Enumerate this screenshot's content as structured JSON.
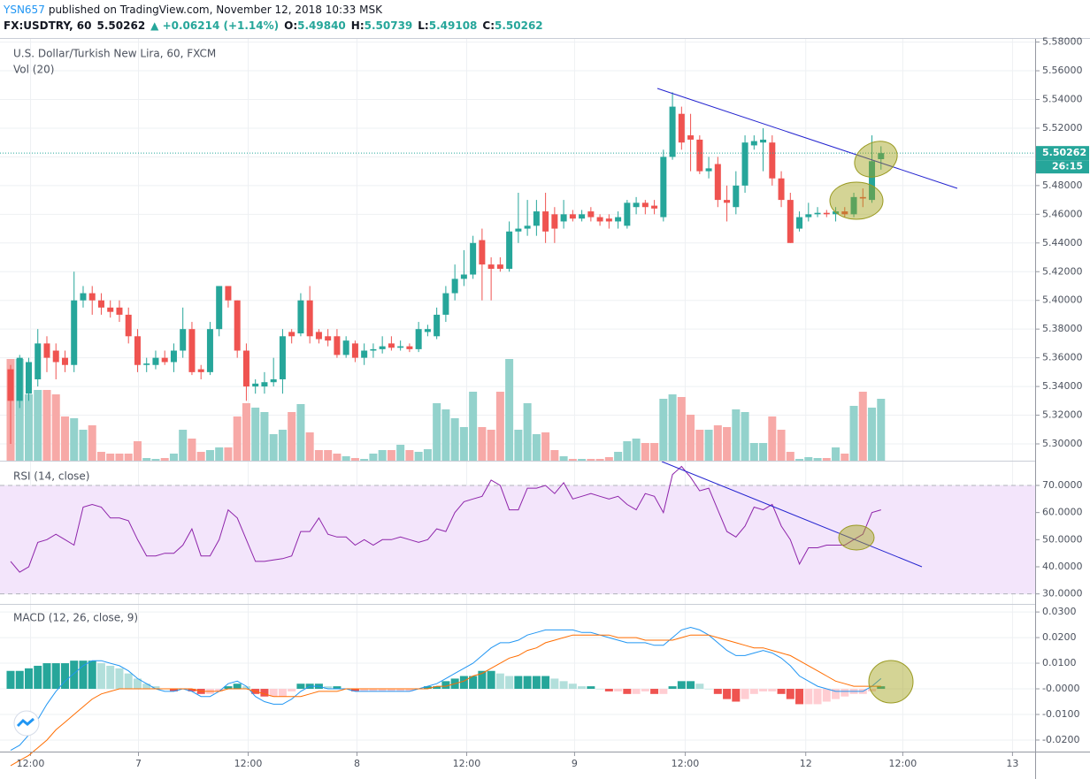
{
  "header": {
    "author": "YSN657",
    "published": "published on TradingView.com, November 12, 2018 10:33 MSK",
    "symbol": "FX:USDTRY, 60",
    "last": "5.50262",
    "change": "▲ +0.06214 (+1.14%)",
    "quote": [
      {
        "label": "O:",
        "value": "5.49840"
      },
      {
        "label": "H:",
        "value": "5.50739"
      },
      {
        "label": "L:",
        "value": "5.49108"
      },
      {
        "label": "C:",
        "value": "5.50262"
      }
    ]
  },
  "chart_data": {
    "type": "candlestick",
    "title": "U.S. Dollar/Turkish New Lira, 60, FXCM",
    "volume_title": "Vol (20)",
    "up_color": "#26a69a",
    "down_color": "#ef5350",
    "volume_up_color": "#93d2cc",
    "volume_down_color": "#f7a9a7",
    "xlim": [
      -1.17,
      113
    ],
    "xticks": [
      {
        "value": 2.2,
        "label": "12:00"
      },
      {
        "value": 14.1,
        "label": "7"
      },
      {
        "value": 26.2,
        "label": "12:00"
      },
      {
        "value": 38.2,
        "label": "8"
      },
      {
        "value": 50.3,
        "label": "12:00"
      },
      {
        "value": 62.2,
        "label": "9"
      },
      {
        "value": 74.4,
        "label": "12:00"
      },
      {
        "value": 87.7,
        "label": "12"
      },
      {
        "value": 98.4,
        "label": "12:00"
      },
      {
        "value": 110.5,
        "label": "13"
      }
    ],
    "ylim": [
      5.2883,
      5.5822
    ],
    "yticks": [
      {
        "value": 5.3,
        "label": "5.30000"
      },
      {
        "value": 5.32,
        "label": "5.32000"
      },
      {
        "value": 5.34,
        "label": "5.34000"
      },
      {
        "value": 5.36,
        "label": "5.36000"
      },
      {
        "value": 5.38,
        "label": "5.38000"
      },
      {
        "value": 5.4,
        "label": "5.40000"
      },
      {
        "value": 5.42,
        "label": "5.42000"
      },
      {
        "value": 5.44,
        "label": "5.44000"
      },
      {
        "value": 5.46,
        "label": "5.46000"
      },
      {
        "value": 5.48,
        "label": "5.48000"
      },
      {
        "value": 5.5,
        "label": "5.50000"
      },
      {
        "value": 5.52,
        "label": "5.52000"
      },
      {
        "value": 5.54,
        "label": "5.54000"
      },
      {
        "value": 5.56,
        "label": "5.56000"
      },
      {
        "value": 5.58,
        "label": "5.58000"
      }
    ],
    "price_line": {
      "value": 5.50262,
      "label": "5.50262"
    },
    "countdown": "26:15",
    "open": [
      5.352,
      5.33,
      5.335,
      5.345,
      5.37,
      5.365,
      5.36,
      5.355,
      5.4,
      5.405,
      5.4,
      5.395,
      5.395,
      5.39,
      5.375,
      5.355,
      5.355,
      5.36,
      5.357,
      5.365,
      5.38,
      5.352,
      5.35,
      5.38,
      5.41,
      5.4,
      5.365,
      5.34,
      5.34,
      5.343,
      5.345,
      5.378,
      5.377,
      5.4,
      5.378,
      5.375,
      5.375,
      5.362,
      5.37,
      5.36,
      5.365,
      5.366,
      5.37,
      5.367,
      5.368,
      5.366,
      5.378,
      5.375,
      5.39,
      5.405,
      5.415,
      5.418,
      5.442,
      5.425,
      5.425,
      5.422,
      5.448,
      5.45,
      5.452,
      5.462,
      5.46,
      5.455,
      5.46,
      5.457,
      5.462,
      5.458,
      5.457,
      5.455,
      5.452,
      5.465,
      5.468,
      5.466,
      5.458,
      5.5,
      5.53,
      5.515,
      5.512,
      5.49,
      5.495,
      5.47,
      5.465,
      5.48,
      5.508,
      5.51,
      5.51,
      5.485,
      5.47,
      5.45,
      5.458,
      5.46,
      5.461,
      5.46,
      5.462,
      5.46,
      5.472,
      5.47,
      5.4984
    ],
    "high": [
      5.355,
      5.362,
      5.36,
      5.38,
      5.375,
      5.37,
      5.365,
      5.42,
      5.41,
      5.41,
      5.405,
      5.4,
      5.4,
      5.395,
      5.38,
      5.36,
      5.365,
      5.365,
      5.37,
      5.395,
      5.385,
      5.355,
      5.385,
      5.41,
      5.41,
      5.4,
      5.37,
      5.345,
      5.35,
      5.36,
      5.38,
      5.38,
      5.405,
      5.41,
      5.38,
      5.38,
      5.38,
      5.375,
      5.372,
      5.37,
      5.37,
      5.375,
      5.375,
      5.372,
      5.37,
      5.385,
      5.383,
      5.395,
      5.41,
      5.425,
      5.435,
      5.445,
      5.45,
      5.43,
      5.43,
      5.455,
      5.475,
      5.47,
      5.47,
      5.475,
      5.465,
      5.47,
      5.463,
      5.463,
      5.465,
      5.46,
      5.46,
      5.462,
      5.47,
      5.472,
      5.47,
      5.47,
      5.505,
      5.545,
      5.535,
      5.53,
      5.515,
      5.5,
      5.5,
      5.48,
      5.49,
      5.515,
      5.515,
      5.52,
      5.515,
      5.49,
      5.475,
      5.462,
      5.468,
      5.465,
      5.463,
      5.465,
      5.465,
      5.475,
      5.478,
      5.515,
      5.50739
    ],
    "low": [
      5.3,
      5.325,
      5.33,
      5.34,
      5.35,
      5.345,
      5.35,
      5.35,
      5.395,
      5.39,
      5.39,
      5.388,
      5.385,
      5.37,
      5.35,
      5.35,
      5.352,
      5.355,
      5.35,
      5.36,
      5.348,
      5.345,
      5.348,
      5.375,
      5.395,
      5.36,
      5.33,
      5.335,
      5.335,
      5.34,
      5.335,
      5.37,
      5.375,
      5.37,
      5.37,
      5.368,
      5.36,
      5.36,
      5.357,
      5.355,
      5.36,
      5.363,
      5.365,
      5.365,
      5.364,
      5.364,
      5.375,
      5.373,
      5.385,
      5.4,
      5.41,
      5.415,
      5.4,
      5.4,
      5.42,
      5.42,
      5.44,
      5.445,
      5.445,
      5.44,
      5.44,
      5.45,
      5.455,
      5.455,
      5.455,
      5.452,
      5.45,
      5.45,
      5.45,
      5.46,
      5.46,
      5.46,
      5.455,
      5.498,
      5.505,
      5.49,
      5.488,
      5.485,
      5.465,
      5.455,
      5.46,
      5.475,
      5.505,
      5.49,
      5.48,
      5.465,
      5.44,
      5.448,
      5.455,
      5.458,
      5.458,
      5.455,
      5.458,
      5.458,
      5.465,
      5.468,
      5.49108
    ],
    "close": [
      5.33,
      5.36,
      5.357,
      5.37,
      5.36,
      5.357,
      5.355,
      5.4,
      5.405,
      5.4,
      5.395,
      5.392,
      5.39,
      5.375,
      5.355,
      5.356,
      5.36,
      5.357,
      5.365,
      5.38,
      5.35,
      5.35,
      5.38,
      5.41,
      5.4,
      5.365,
      5.34,
      5.342,
      5.343,
      5.345,
      5.375,
      5.375,
      5.4,
      5.375,
      5.373,
      5.372,
      5.362,
      5.372,
      5.36,
      5.365,
      5.366,
      5.368,
      5.367,
      5.368,
      5.366,
      5.38,
      5.38,
      5.39,
      5.405,
      5.415,
      5.418,
      5.44,
      5.425,
      5.422,
      5.422,
      5.448,
      5.45,
      5.452,
      5.462,
      5.448,
      5.45,
      5.46,
      5.457,
      5.46,
      5.458,
      5.455,
      5.455,
      5.458,
      5.468,
      5.468,
      5.465,
      5.464,
      5.5,
      5.535,
      5.51,
      5.512,
      5.49,
      5.492,
      5.47,
      5.468,
      5.48,
      5.51,
      5.511,
      5.512,
      5.485,
      5.47,
      5.44,
      5.458,
      5.46,
      5.461,
      5.46,
      5.462,
      5.46,
      5.472,
      5.471,
      5.497,
      5.50262
    ],
    "volume": [
      115,
      115,
      75,
      80,
      80,
      75,
      50,
      48,
      35,
      40,
      10,
      8,
      8,
      8,
      22,
      3,
      2,
      3,
      8,
      35,
      25,
      10,
      12,
      15,
      15,
      50,
      65,
      60,
      55,
      30,
      35,
      55,
      64,
      32,
      12,
      12,
      8,
      5,
      3,
      2,
      8,
      12,
      12,
      18,
      12,
      10,
      13,
      65,
      58,
      48,
      38,
      78,
      38,
      35,
      78,
      115,
      35,
      65,
      30,
      32,
      12,
      5,
      2,
      2,
      2,
      2,
      4,
      10,
      22,
      25,
      20,
      20,
      70,
      75,
      72,
      52,
      35,
      35,
      40,
      38,
      58,
      55,
      20,
      20,
      50,
      35,
      10,
      2,
      4,
      3,
      3,
      15,
      8,
      62,
      78,
      60,
      70
    ],
    "rsi": {
      "title": "RSI (14, close)",
      "color": "#8e24aa",
      "band_color": "#f3e5fb",
      "band": [
        30,
        70
      ],
      "ylim": [
        26.3,
        78.8
      ],
      "yticks": [
        {
          "value": 30,
          "label": "30.0000"
        },
        {
          "value": 40,
          "label": "40.0000"
        },
        {
          "value": 50,
          "label": "50.0000"
        },
        {
          "value": 60,
          "label": "60.0000"
        },
        {
          "value": 70,
          "label": "70.0000"
        }
      ],
      "values": [
        42,
        38,
        40,
        49,
        50,
        52,
        50,
        48,
        62,
        63,
        62,
        58,
        58,
        57,
        50,
        44,
        44,
        45,
        45,
        48,
        54,
        44,
        44,
        50,
        61,
        58,
        50,
        42,
        42,
        42.5,
        43,
        44,
        53,
        53,
        58,
        52,
        51,
        51,
        48,
        50,
        48,
        50,
        50,
        51,
        50,
        49,
        50,
        54,
        53,
        60,
        64,
        65,
        66,
        72,
        70,
        61,
        61,
        69,
        69,
        70,
        67,
        71,
        65,
        66,
        67,
        66,
        65,
        66,
        63,
        61,
        67,
        66,
        60,
        74,
        77,
        73,
        68,
        69,
        61,
        53,
        51,
        55,
        62,
        61,
        63,
        55,
        50,
        41,
        47,
        47,
        48,
        48,
        48,
        50,
        52,
        60,
        61
      ]
    },
    "macd": {
      "title": "MACD (12, 26, close, 9)",
      "ylim": [
        -0.0245,
        0.0328
      ],
      "yticks": [
        {
          "value": -0.02,
          "label": "-0.0200"
        },
        {
          "value": -0.01,
          "label": "-0.0100"
        },
        {
          "value": 0,
          "label": "-0.0000"
        },
        {
          "value": 0.01,
          "label": "0.0100"
        },
        {
          "value": 0.02,
          "label": "0.0200"
        },
        {
          "value": 0.03,
          "label": "0.0300"
        }
      ],
      "macd_color": "#2196f3",
      "signal_color": "#ff6d00",
      "hist_colors": [
        "#26a69a",
        "#b2dfdb",
        "#ffcdd2",
        "#ef5350"
      ],
      "macd": [
        -0.024,
        -0.022,
        -0.018,
        -0.012,
        -0.006,
        -0.001,
        0.003,
        0.006,
        0.009,
        0.011,
        0.011,
        0.01,
        0.009,
        0.007,
        0.004,
        0.002,
        0.0,
        -0.001,
        -0.001,
        0.0,
        -0.001,
        -0.003,
        -0.003,
        -0.001,
        0.002,
        0.003,
        0.001,
        -0.003,
        -0.005,
        -0.006,
        -0.006,
        -0.004,
        -0.001,
        0.001,
        0.001,
        0.0,
        0.0,
        0.0,
        -0.001,
        -0.001,
        -0.001,
        -0.001,
        -0.001,
        -0.001,
        -0.001,
        0.0,
        0.001,
        0.002,
        0.004,
        0.006,
        0.008,
        0.01,
        0.013,
        0.016,
        0.018,
        0.018,
        0.019,
        0.021,
        0.022,
        0.023,
        0.023,
        0.023,
        0.023,
        0.022,
        0.022,
        0.021,
        0.02,
        0.019,
        0.018,
        0.018,
        0.018,
        0.017,
        0.017,
        0.02,
        0.023,
        0.024,
        0.023,
        0.021,
        0.018,
        0.015,
        0.013,
        0.013,
        0.014,
        0.015,
        0.014,
        0.012,
        0.009,
        0.005,
        0.003,
        0.001,
        0.0,
        -0.001,
        -0.001,
        -0.001,
        -0.001,
        0.001,
        0.004
      ],
      "signal": [
        -0.03,
        -0.028,
        -0.026,
        -0.023,
        -0.02,
        -0.016,
        -0.013,
        -0.01,
        -0.007,
        -0.004,
        -0.002,
        -0.001,
        0.0,
        0.0,
        0.0,
        0.0,
        0.0,
        0.0,
        0.0,
        0.0,
        0.0,
        -0.001,
        -0.001,
        -0.001,
        0.0,
        0.0,
        0.0,
        -0.001,
        -0.002,
        -0.003,
        -0.003,
        -0.003,
        -0.003,
        -0.002,
        -0.001,
        -0.001,
        -0.001,
        0.0,
        0.0,
        0.0,
        0.0,
        0.0,
        0.0,
        0.0,
        0.0,
        0.0,
        0.0,
        0.001,
        0.001,
        0.002,
        0.003,
        0.005,
        0.006,
        0.008,
        0.01,
        0.012,
        0.013,
        0.015,
        0.016,
        0.018,
        0.019,
        0.02,
        0.021,
        0.021,
        0.021,
        0.021,
        0.021,
        0.02,
        0.02,
        0.02,
        0.019,
        0.019,
        0.019,
        0.019,
        0.02,
        0.021,
        0.021,
        0.021,
        0.02,
        0.019,
        0.018,
        0.017,
        0.016,
        0.016,
        0.015,
        0.014,
        0.013,
        0.011,
        0.009,
        0.007,
        0.005,
        0.003,
        0.002,
        0.001,
        0.001,
        0.001,
        0.001
      ],
      "histogram": [
        0.007,
        0.007,
        0.008,
        0.009,
        0.01,
        0.01,
        0.01,
        0.011,
        0.011,
        0.011,
        0.01,
        0.009,
        0.008,
        0.006,
        0.004,
        0.002,
        0.001,
        0.0,
        -0.001,
        0.0,
        -0.001,
        -0.002,
        -0.002,
        -0.001,
        0.001,
        0.002,
        0.001,
        -0.002,
        -0.003,
        -0.003,
        -0.003,
        -0.001,
        0.002,
        0.002,
        0.002,
        0.001,
        0.001,
        0.0,
        -0.001,
        -0.001,
        -0.001,
        -0.001,
        -0.001,
        -0.001,
        -0.001,
        0.0,
        0.001,
        0.001,
        0.003,
        0.004,
        0.005,
        0.005,
        0.007,
        0.007,
        0.006,
        0.005,
        0.005,
        0.005,
        0.005,
        0.005,
        0.004,
        0.003,
        0.002,
        0.001,
        0.001,
        0.0,
        -0.001,
        -0.001,
        -0.002,
        -0.002,
        -0.001,
        -0.002,
        -0.002,
        0.001,
        0.003,
        0.003,
        0.002,
        0.0,
        -0.002,
        -0.004,
        -0.005,
        -0.004,
        -0.002,
        -0.001,
        -0.001,
        -0.002,
        -0.004,
        -0.006,
        -0.006,
        -0.006,
        -0.005,
        -0.004,
        -0.003,
        -0.002,
        -0.002,
        -0.001,
        0.001
      ]
    }
  }
}
